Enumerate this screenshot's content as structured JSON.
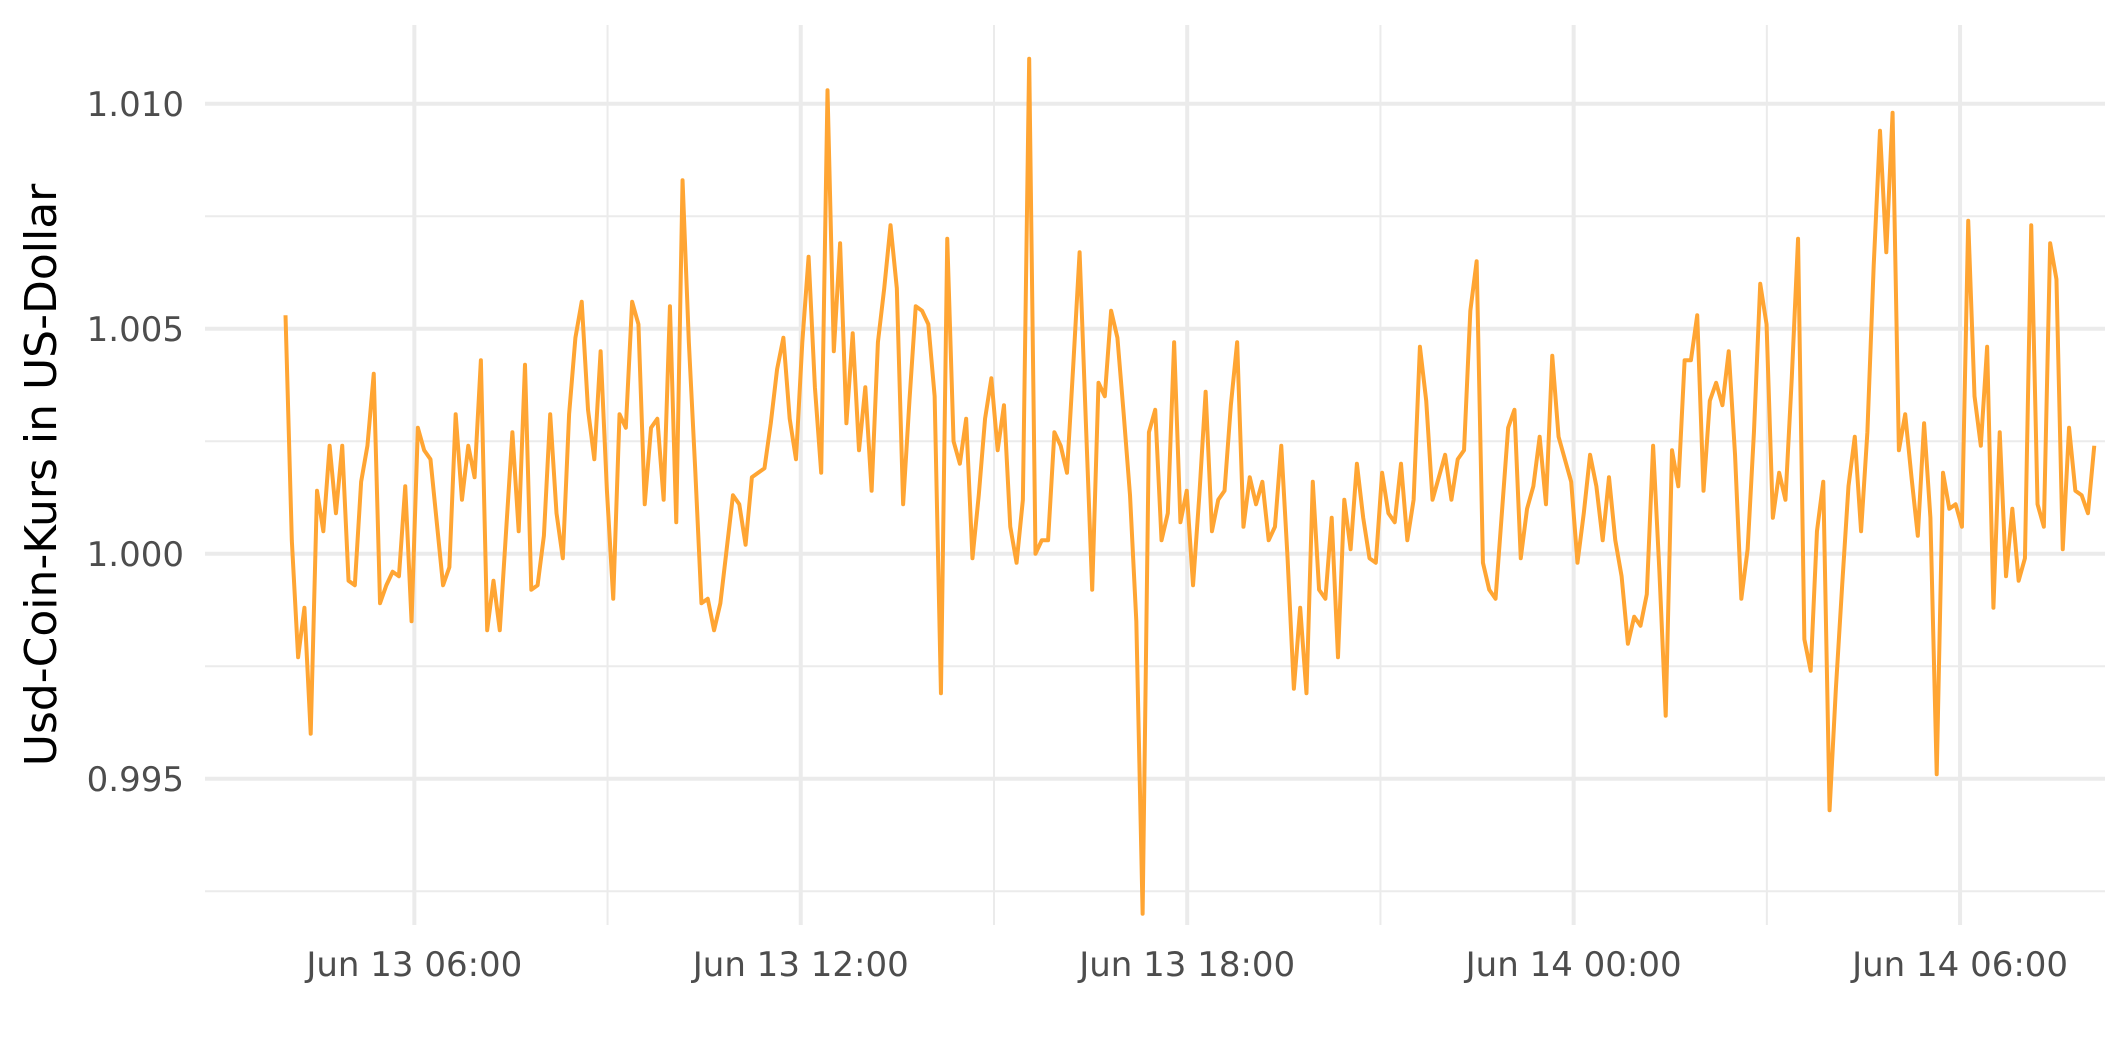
{
  "chart_data": {
    "type": "line",
    "title": "",
    "xlabel": "",
    "ylabel": "Usd-Coin-Kurs in US-Dollar",
    "x_start": "2023-06-13 04:00",
    "x_end": "2023-06-14 08:05",
    "xlim": [
      "2023-06-13 02:45",
      "2023-06-14 08:15"
    ],
    "ylim": [
      0.99175,
      1.01175
    ],
    "x_ticks": [
      {
        "value": "2023-06-13 06:00",
        "label": "Jun 13 06:00"
      },
      {
        "value": "2023-06-13 12:00",
        "label": "Jun 13 12:00"
      },
      {
        "value": "2023-06-13 18:00",
        "label": "Jun 13 18:00"
      },
      {
        "value": "2023-06-14 00:00",
        "label": "Jun 14 00:00"
      },
      {
        "value": "2023-06-14 06:00",
        "label": "Jun 14 06:00"
      }
    ],
    "y_ticks": [
      {
        "value": 0.995,
        "label": "0.995"
      },
      {
        "value": 1.0,
        "label": "1.000"
      },
      {
        "value": 1.005,
        "label": "1.005"
      },
      {
        "value": 1.01,
        "label": "1.010"
      }
    ],
    "grid": true,
    "line_color": "#FFA533",
    "series": [
      {
        "values": [
          1.0053,
          1.0003,
          0.9977,
          0.9988,
          0.996,
          1.0014,
          1.0005,
          1.0024,
          1.0009,
          1.0024,
          0.9994,
          0.9993,
          1.0016,
          1.0024,
          1.004,
          0.9989,
          0.9993,
          0.9996,
          0.9995,
          1.0015,
          0.9985,
          1.0028,
          1.0023,
          1.0021,
          1.0007,
          0.9993,
          0.9997,
          1.0031,
          1.0012,
          1.0024,
          1.0017,
          1.0043,
          0.9983,
          0.9994,
          0.9983,
          1.0005,
          1.0027,
          1.0005,
          1.0042,
          0.9992,
          0.9993,
          1.0004,
          1.0031,
          1.0009,
          0.9999,
          1.0031,
          1.0048,
          1.0056,
          1.0032,
          1.0021,
          1.0045,
          1.0014,
          0.999,
          1.0031,
          1.0028,
          1.0056,
          1.0051,
          1.0011,
          1.0028,
          1.003,
          1.0012,
          1.0055,
          1.0007,
          1.0083,
          1.0047,
          1.0019,
          0.9989,
          0.999,
          0.9983,
          0.9989,
          1.0001,
          1.0013,
          1.0011,
          1.0002,
          1.0017,
          1.0018,
          1.0019,
          1.0029,
          1.0041,
          1.0048,
          1.003,
          1.0021,
          1.0047,
          1.0066,
          1.0037,
          1.0018,
          1.0103,
          1.0045,
          1.0069,
          1.0029,
          1.0049,
          1.0023,
          1.0037,
          1.0014,
          1.0047,
          1.0059,
          1.0073,
          1.0059,
          1.0011,
          1.0034,
          1.0055,
          1.0054,
          1.0051,
          1.0035,
          0.9969,
          1.007,
          1.0025,
          1.002,
          1.003,
          0.9999,
          1.0013,
          1.003,
          1.0039,
          1.0023,
          1.0033,
          1.0006,
          0.9998,
          1.0012,
          1.011,
          1.0,
          1.0003,
          1.0003,
          1.0027,
          1.0024,
          1.0018,
          1.0042,
          1.0067,
          1.0029,
          0.9992,
          1.0038,
          1.0035,
          1.0054,
          1.0048,
          1.0031,
          1.0013,
          0.9985,
          0.992,
          1.0027,
          1.0032,
          1.0003,
          1.0009,
          1.0047,
          1.0007,
          1.0014,
          0.9993,
          1.0013,
          1.0036,
          1.0005,
          1.0012,
          1.0014,
          1.0033,
          1.0047,
          1.0006,
          1.0017,
          1.0011,
          1.0016,
          1.0003,
          1.0006,
          1.0024,
          0.9999,
          0.997,
          0.9988,
          0.9969,
          1.0016,
          0.9992,
          0.999,
          1.0008,
          0.9977,
          1.0012,
          1.0001,
          1.002,
          1.0008,
          0.9999,
          0.9998,
          1.0018,
          1.0009,
          1.0007,
          1.002,
          1.0003,
          1.0012,
          1.0046,
          1.0034,
          1.0012,
          1.0017,
          1.0022,
          1.0012,
          1.0021,
          1.0023,
          1.0054,
          1.0065,
          0.9998,
          0.9992,
          0.999,
          1.0009,
          1.0028,
          1.0032,
          0.9999,
          1.001,
          1.0015,
          1.0026,
          1.0011,
          1.0044,
          1.0026,
          1.0021,
          1.0016,
          0.9998,
          1.0009,
          1.0022,
          1.0015,
          1.0003,
          1.0017,
          1.0003,
          0.9995,
          0.998,
          0.9986,
          0.9984,
          0.9991,
          1.0024,
          0.9996,
          0.9964,
          1.0023,
          1.0015,
          1.0043,
          1.0043,
          1.0053,
          1.0014,
          1.0034,
          1.0038,
          1.0033,
          1.0045,
          1.0022,
          0.999,
          1.0001,
          1.0027,
          1.006,
          1.0051,
          1.0008,
          1.0018,
          1.0012,
          1.0039,
          1.007,
          0.9981,
          0.9974,
          1.0005,
          1.0016,
          0.9943,
          0.997,
          0.9993,
          1.0015,
          1.0026,
          1.0005,
          1.0027,
          1.0064,
          1.0094,
          1.0067,
          1.0098,
          1.0023,
          1.0031,
          1.0017,
          1.0004,
          1.0029,
          1.0008,
          0.9951,
          1.0018,
          1.001,
          1.0011,
          1.0006,
          1.0074,
          1.0035,
          1.0024,
          1.0046,
          0.9988,
          1.0027,
          0.9995,
          1.001,
          0.9994,
          0.9999,
          1.0073,
          1.0011,
          1.0006,
          1.0069,
          1.0061,
          1.0001,
          1.0028,
          1.0014,
          1.0013,
          1.0009,
          1.0024
        ]
      }
    ]
  }
}
